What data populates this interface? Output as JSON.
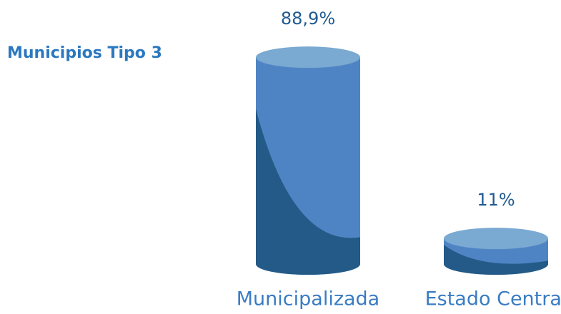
{
  "chart_data": {
    "type": "bar",
    "title": "Municipios Tipo 3",
    "categories": [
      "Municipalizada",
      "Estado Central"
    ],
    "values": [
      88.9,
      11
    ],
    "value_labels": [
      "88,9%",
      "11%"
    ],
    "color": "#4f84c4"
  }
}
